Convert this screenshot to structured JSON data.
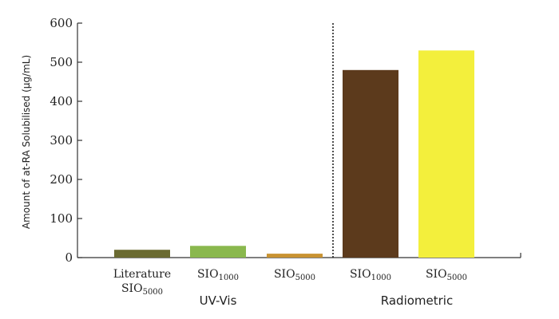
{
  "chart_data": {
    "type": "bar",
    "ylabel": "Amount of at-RA Solubilised (µg/mL)",
    "ylim": [
      0,
      600
    ],
    "yticks": [
      0,
      100,
      200,
      300,
      400,
      500,
      600
    ],
    "groups": [
      {
        "label": "UV-Vis",
        "bars": [
          {
            "line1": "Literature",
            "line2": "SIO",
            "sub2": "5000",
            "value": 20,
            "color": "#6b6b32"
          },
          {
            "line1": "SIO",
            "sub1": "1000",
            "line2": "",
            "sub2": "",
            "value": 30,
            "color": "#8ab84e"
          },
          {
            "line1": "SIO",
            "sub1": "5000",
            "line2": "",
            "sub2": "",
            "value": 10,
            "color": "#c99332"
          }
        ]
      },
      {
        "label": "Radiometric",
        "bars": [
          {
            "line1": "SIO",
            "sub1": "1000",
            "line2": "",
            "sub2": "",
            "value": 480,
            "color": "#5c3a1c"
          },
          {
            "line1": "SIO",
            "sub1": "5000",
            "line2": "",
            "sub2": "",
            "value": 530,
            "color": "#f3ef3c"
          }
        ]
      }
    ],
    "separator": "dotted-vertical-line-between-groups"
  }
}
